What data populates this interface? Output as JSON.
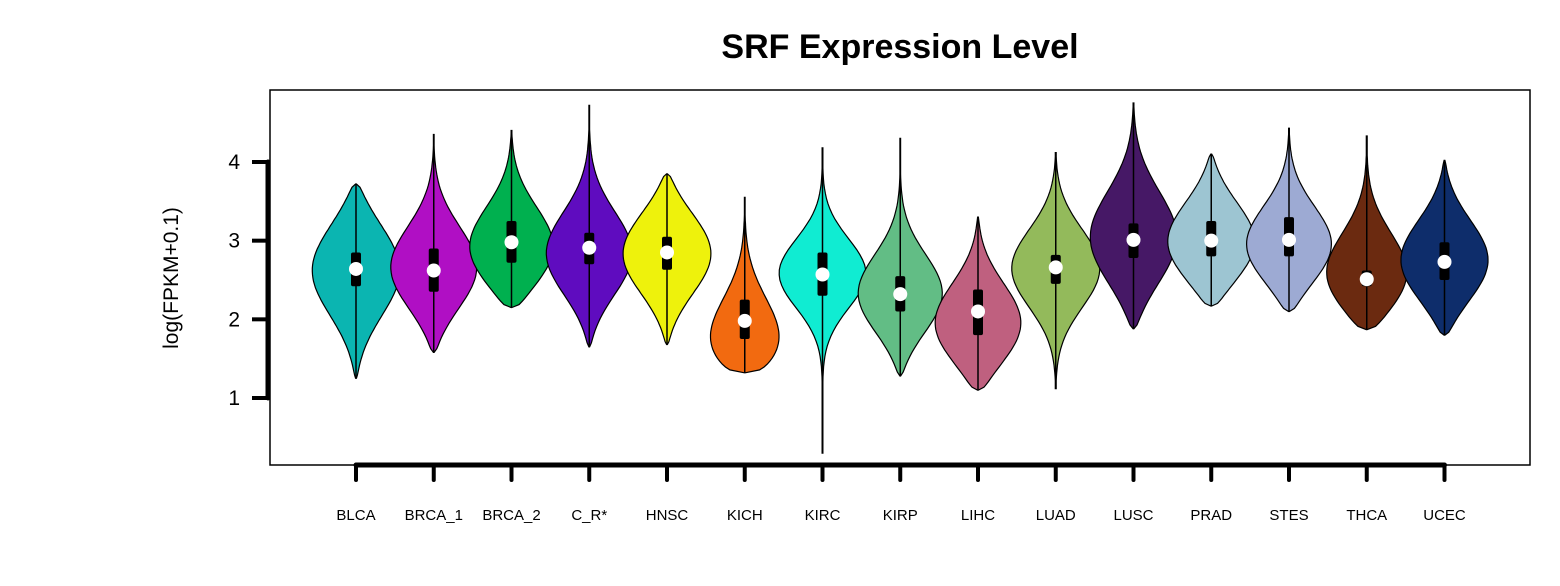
{
  "chart_data": {
    "type": "violin",
    "title": "SRF Expression Level",
    "xlabel": "",
    "ylabel": "log(FPKM+0.1)",
    "ylim": [
      0.15,
      4.85
    ],
    "yticks": [
      1,
      2,
      3,
      4
    ],
    "grid": false,
    "legend": "none",
    "categories": [
      "BLCA",
      "BRCA_1",
      "BRCA_2",
      "C_R*",
      "HNSC",
      "KICH",
      "KIRC",
      "KIRP",
      "LIHC",
      "LUAD",
      "LUSC",
      "PRAD",
      "STES",
      "THCA",
      "UCEC"
    ],
    "colors": [
      "#0BB5B1",
      "#B00FC4",
      "#00B04F",
      "#5F0CBF",
      "#EEF20C",
      "#F26A10",
      "#10ECD2",
      "#62BD85",
      "#BF607F",
      "#93BA5B",
      "#461866",
      "#9DC5D2",
      "#9DAAD3",
      "#6B2A10",
      "#0E2D6B"
    ],
    "min": [
      1.25,
      1.58,
      2.15,
      1.65,
      1.68,
      1.32,
      0.3,
      1.28,
      1.1,
      1.12,
      1.88,
      2.17,
      2.1,
      1.87,
      1.8
    ],
    "max": [
      3.72,
      4.35,
      4.4,
      4.72,
      3.85,
      3.55,
      4.18,
      4.3,
      3.3,
      4.12,
      4.75,
      4.1,
      4.43,
      4.33,
      4.02
    ],
    "q1": [
      2.42,
      2.35,
      2.72,
      2.7,
      2.63,
      1.75,
      2.3,
      2.1,
      1.8,
      2.45,
      2.78,
      2.8,
      2.8,
      2.42,
      2.5
    ],
    "median": [
      2.64,
      2.62,
      2.98,
      2.91,
      2.85,
      1.98,
      2.57,
      2.32,
      2.1,
      2.66,
      3.01,
      3.0,
      3.01,
      2.51,
      2.73
    ],
    "q3": [
      2.85,
      2.9,
      3.25,
      3.1,
      3.05,
      2.25,
      2.85,
      2.55,
      2.38,
      2.82,
      3.22,
      3.25,
      3.3,
      2.62,
      2.98
    ],
    "density_mode": [
      2.65,
      2.62,
      2.85,
      2.8,
      2.85,
      1.55,
      2.6,
      2.28,
      1.9,
      2.65,
      3.0,
      2.95,
      2.9,
      2.5,
      2.72
    ],
    "density_width": [
      0.62,
      0.55,
      0.55,
      0.55,
      0.55,
      0.6,
      0.45,
      0.52,
      0.55,
      0.52,
      0.62,
      0.55,
      0.52,
      0.55,
      0.55
    ]
  }
}
